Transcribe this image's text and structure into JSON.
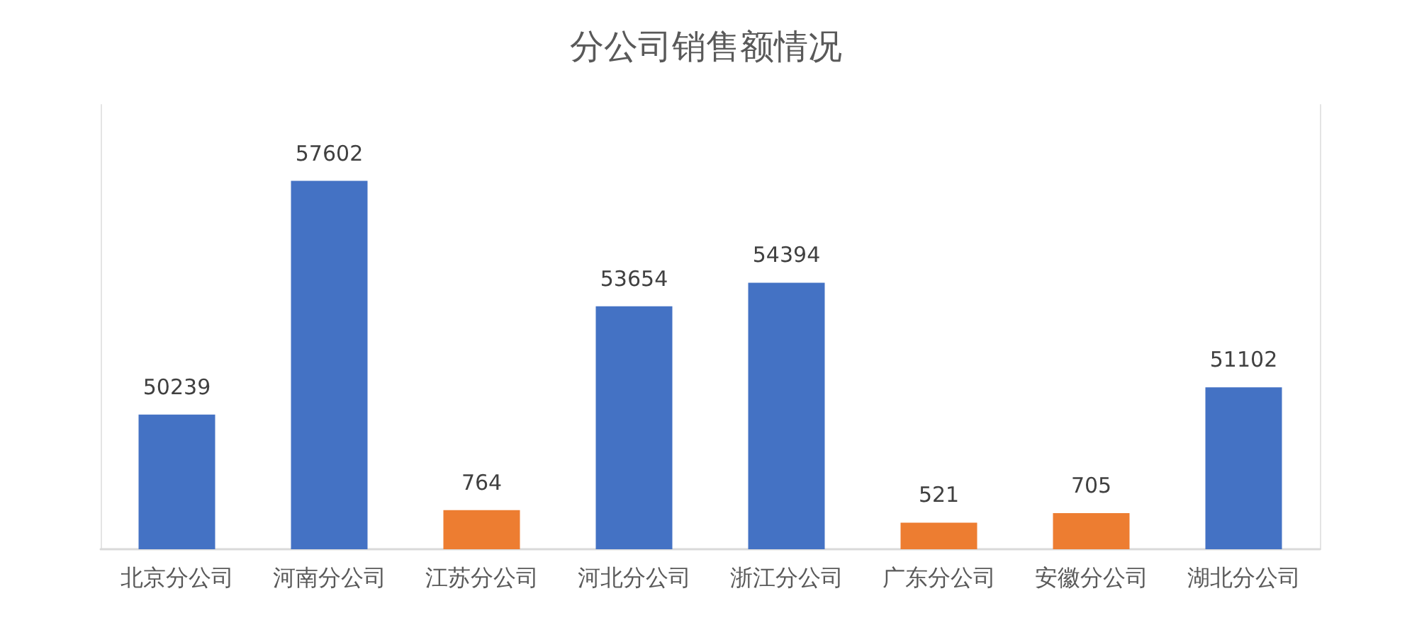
{
  "chart_data": {
    "type": "bar",
    "title": "分公司销售额情况",
    "categories": [
      "北京分公司",
      "河南分公司",
      "江苏分公司",
      "河北分公司",
      "浙江分公司",
      "广东分公司",
      "安徽分公司",
      "湖北分公司"
    ],
    "series": [
      {
        "color": "#4472c4",
        "values": [
          50239,
          57602,
          null,
          53654,
          54394,
          null,
          null,
          51102
        ]
      },
      {
        "color": "#ed7d31",
        "axis": "y2",
        "values": [
          null,
          null,
          764,
          null,
          null,
          521,
          705,
          null
        ]
      }
    ],
    "ylim": [
      46000,
      60000
    ],
    "y2lim": [
      0,
      8700
    ],
    "data_labels": true,
    "grid": false,
    "tick_labels": "x"
  }
}
